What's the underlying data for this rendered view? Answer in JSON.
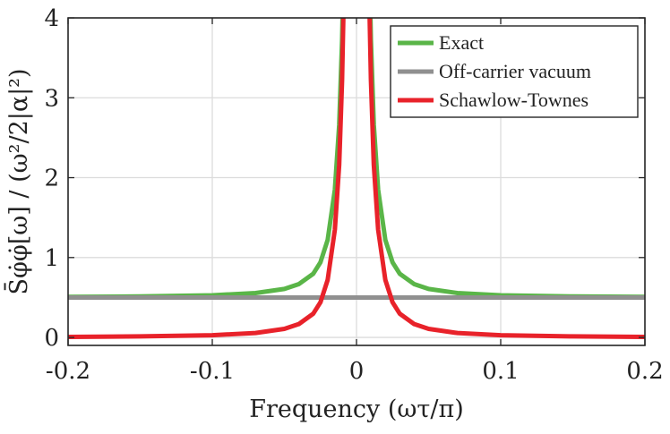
{
  "chart_data": {
    "type": "line",
    "xlabel": "Frequency (ωτ/π)",
    "ylabel": "S̄φ̇φ̇[ω] / (ω²/2|α|²)",
    "xlim": [
      -0.2,
      0.2
    ],
    "ylim": [
      -0.1,
      4
    ],
    "xticks": [
      -0.2,
      -0.1,
      0,
      0.1,
      0.2
    ],
    "xtick_labels": [
      "-0.2",
      "-0.1",
      "0",
      "0.1",
      "0.2"
    ],
    "yticks": [
      0,
      1,
      2,
      3,
      4
    ],
    "ytick_labels": [
      "0",
      "1",
      "2",
      "3",
      "4"
    ],
    "grid": true,
    "legend_position": "top-right",
    "series": [
      {
        "name": "Exact",
        "color": "#5ab548",
        "x": [
          -0.2,
          -0.15,
          -0.1,
          -0.07,
          -0.05,
          -0.04,
          -0.03,
          -0.025,
          -0.02,
          -0.015,
          -0.012,
          -0.01,
          -0.008,
          0.008,
          0.01,
          0.012,
          0.015,
          0.02,
          0.025,
          0.03,
          0.04,
          0.05,
          0.07,
          0.1,
          0.15,
          0.2
        ],
        "y": [
          0.507,
          0.513,
          0.528,
          0.555,
          0.607,
          0.667,
          0.797,
          0.94,
          1.22,
          1.85,
          2.66,
          3.72,
          5.5,
          5.5,
          3.72,
          2.66,
          1.85,
          1.22,
          0.94,
          0.797,
          0.667,
          0.607,
          0.555,
          0.528,
          0.513,
          0.507
        ]
      },
      {
        "name": "Off-carrier vacuum",
        "color": "#909090",
        "x": [
          -0.2,
          0.2
        ],
        "y": [
          0.5,
          0.5
        ]
      },
      {
        "name": "Schawlow-Townes",
        "color": "#e8222a",
        "x": [
          -0.2,
          -0.15,
          -0.1,
          -0.07,
          -0.05,
          -0.04,
          -0.03,
          -0.025,
          -0.02,
          -0.015,
          -0.012,
          -0.01,
          -0.008,
          0.008,
          0.01,
          0.012,
          0.015,
          0.02,
          0.025,
          0.03,
          0.04,
          0.05,
          0.07,
          0.1,
          0.15,
          0.2
        ],
        "y": [
          0.007,
          0.013,
          0.028,
          0.055,
          0.107,
          0.167,
          0.297,
          0.44,
          0.72,
          1.35,
          2.16,
          3.22,
          5.0,
          5.0,
          3.22,
          2.16,
          1.35,
          0.72,
          0.44,
          0.297,
          0.167,
          0.107,
          0.055,
          0.028,
          0.013,
          0.007
        ]
      }
    ]
  }
}
